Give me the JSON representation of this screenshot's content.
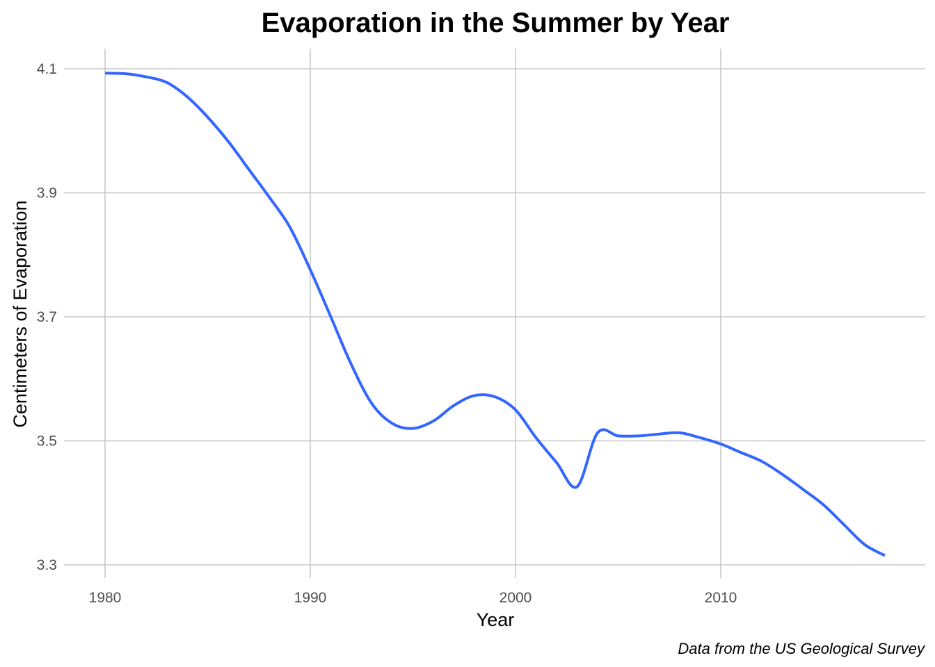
{
  "chart_data": {
    "type": "line",
    "title": "Evaporation in the Summer by Year",
    "xlabel": "Year",
    "ylabel": "Centimeters of Evaporation",
    "caption": "Data from the US Geological Survey",
    "xlim": [
      1980,
      2018
    ],
    "ylim": [
      3.3,
      4.1
    ],
    "x_ticks": [
      1980,
      1990,
      2000,
      2010
    ],
    "y_ticks": [
      3.3,
      3.5,
      3.7,
      3.9,
      4.1
    ],
    "x_tick_labels": [
      "1980",
      "1990",
      "2000",
      "2010"
    ],
    "y_tick_labels": [
      "3.3",
      "3.5",
      "3.7",
      "3.9",
      "4.1"
    ],
    "grid": true,
    "legend": "none",
    "series": [
      {
        "color": "#3366ff",
        "x": [
          1980,
          1981,
          1982,
          1983,
          1984,
          1985,
          1986,
          1987,
          1988,
          1989,
          1990,
          1991,
          1992,
          1993,
          1994,
          1995,
          1996,
          1997,
          1998,
          1999,
          2000,
          2001,
          2002,
          2003,
          2004,
          2005,
          2006,
          2007,
          2008,
          2009,
          2010,
          2011,
          2012,
          2013,
          2014,
          2015,
          2016,
          2017,
          2018
        ],
        "y": [
          4.093,
          4.092,
          4.087,
          4.078,
          4.055,
          4.022,
          3.983,
          3.938,
          3.893,
          3.845,
          3.776,
          3.7,
          3.623,
          3.56,
          3.528,
          3.52,
          3.532,
          3.557,
          3.573,
          3.571,
          3.55,
          3.505,
          3.465,
          3.426,
          3.513,
          3.508,
          3.508,
          3.511,
          3.513,
          3.505,
          3.495,
          3.481,
          3.467,
          3.446,
          3.422,
          3.397,
          3.365,
          3.333,
          3.315
        ]
      }
    ]
  }
}
